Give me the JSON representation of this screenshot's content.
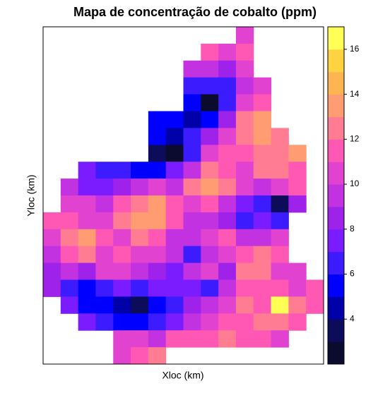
{
  "chart_data": {
    "type": "heatmap",
    "title": "Mapa de concentração de cobalto (ppm)",
    "xlabel": "Xloc (km)",
    "ylabel": "Yloc (km)",
    "z": [
      [
        null,
        null,
        null,
        null,
        null,
        null,
        null,
        null,
        null,
        null,
        null,
        10,
        null,
        null,
        null,
        null
      ],
      [
        null,
        null,
        null,
        null,
        null,
        null,
        null,
        null,
        null,
        11,
        10,
        11,
        null,
        null,
        null,
        null
      ],
      [
        null,
        null,
        null,
        null,
        null,
        null,
        null,
        null,
        9,
        9,
        8,
        10,
        null,
        null,
        null,
        null
      ],
      [
        null,
        null,
        null,
        null,
        null,
        null,
        null,
        null,
        6,
        6,
        6,
        9,
        10,
        null,
        null,
        null
      ],
      [
        null,
        null,
        null,
        null,
        null,
        null,
        null,
        null,
        5,
        2,
        6,
        10,
        11,
        null,
        null,
        null
      ],
      [
        null,
        null,
        null,
        null,
        null,
        null,
        5,
        5,
        4,
        5,
        8,
        12,
        13,
        null,
        null,
        null
      ],
      [
        null,
        null,
        null,
        null,
        null,
        null,
        5,
        4,
        6,
        8,
        10,
        12,
        13,
        12,
        null,
        null
      ],
      [
        null,
        null,
        null,
        null,
        null,
        null,
        3,
        2,
        6,
        10,
        11,
        11,
        12,
        12,
        13,
        null
      ],
      [
        null,
        null,
        7,
        6,
        6,
        5,
        5,
        7,
        9,
        12,
        11,
        10,
        12,
        12,
        11,
        null
      ],
      [
        null,
        9,
        7,
        7,
        8,
        9,
        10,
        9,
        12,
        13,
        12,
        10,
        9,
        10,
        11,
        null
      ],
      [
        null,
        10,
        10,
        9,
        11,
        12,
        13,
        11,
        10,
        11,
        9,
        7,
        6,
        3,
        8,
        null
      ],
      [
        11,
        11,
        10,
        10,
        12,
        13,
        13,
        11,
        9,
        9,
        8,
        6,
        7,
        6,
        null,
        null
      ],
      [
        10,
        12,
        13,
        11,
        10,
        12,
        11,
        9,
        9,
        10,
        11,
        9,
        9,
        10,
        null,
        null
      ],
      [
        9,
        11,
        12,
        10,
        11,
        10,
        10,
        9,
        6,
        9,
        10,
        11,
        12,
        11,
        null,
        null
      ],
      [
        8,
        9,
        8,
        10,
        10,
        9,
        8,
        7,
        9,
        10,
        8,
        12,
        12,
        10,
        10,
        null
      ],
      [
        8,
        6,
        5,
        6,
        7,
        6,
        7,
        7,
        7,
        6,
        9,
        11,
        11,
        11,
        10,
        11
      ],
      [
        null,
        7,
        5,
        5,
        4,
        3,
        5,
        6,
        8,
        9,
        10,
        12,
        11,
        16,
        12,
        11
      ],
      [
        null,
        null,
        7,
        6,
        5,
        5,
        6,
        7,
        9,
        10,
        11,
        11,
        12,
        12,
        11,
        null
      ],
      [
        null,
        null,
        null,
        null,
        10,
        10,
        9,
        11,
        11,
        11,
        12,
        11,
        11,
        10,
        null,
        null
      ],
      [
        null,
        null,
        null,
        null,
        10,
        11,
        12,
        null,
        null,
        null,
        null,
        null,
        null,
        null,
        null,
        null
      ]
    ],
    "colorbar": {
      "lim": [
        2,
        17
      ],
      "ticks": [
        4,
        6,
        8,
        10,
        12,
        14,
        16
      ],
      "breaks": [
        2,
        3,
        4,
        5,
        6,
        7,
        8,
        9,
        10,
        11,
        12,
        13,
        14,
        15,
        16,
        17
      ],
      "colors": [
        "#0b0b2e",
        "#0c0c5a",
        "#0000a8",
        "#0000ff",
        "#3c1cff",
        "#7a1cff",
        "#9e22ea",
        "#c232e0",
        "#e242d0",
        "#ff58b4",
        "#ff7c92",
        "#ff9c72",
        "#ffb452",
        "#ffd240",
        "#ffff55"
      ]
    }
  }
}
